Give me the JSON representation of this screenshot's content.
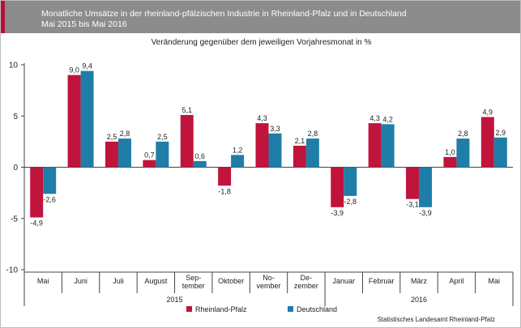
{
  "header": {
    "title": "Monatliche Umsätze in der rheinland-pfälzischen Industrie in Rheinland-Pfalz und in Deutschland",
    "period": "Mai 2015 bis Mai 2016"
  },
  "source": "Statistisches Landesamt Rheinland-Pfalz",
  "chart_data": {
    "type": "bar",
    "title": "Veränderung gegenüber dem jeweiligen Vorjahresmonat in %",
    "categories": [
      [
        "Mai"
      ],
      [
        "Juni"
      ],
      [
        "Juli"
      ],
      [
        "August"
      ],
      [
        "Sep-",
        "tember"
      ],
      [
        "Oktober"
      ],
      [
        "No-",
        "vember"
      ],
      [
        "De-",
        "zember"
      ],
      [
        "Januar"
      ],
      [
        "Februar"
      ],
      [
        "März"
      ],
      [
        "April"
      ],
      [
        "Mai"
      ]
    ],
    "year_groups": [
      {
        "label": "2015",
        "start": 0,
        "end": 7
      },
      {
        "label": "2016",
        "start": 8,
        "end": 12
      }
    ],
    "series": [
      {
        "name": "Rheinland-Pfalz",
        "color": "#c0143c",
        "values": [
          -4.9,
          9.0,
          2.5,
          0.7,
          5.1,
          -1.8,
          4.3,
          2.1,
          -3.9,
          4.3,
          -3.1,
          1.0,
          4.9
        ]
      },
      {
        "name": "Deutschland",
        "color": "#1f7ea8",
        "values": [
          -2.6,
          9.4,
          2.8,
          2.5,
          0.6,
          1.2,
          3.3,
          2.8,
          -2.8,
          4.2,
          -3.9,
          2.8,
          2.9
        ]
      }
    ],
    "value_labels": [
      [
        "-4,9",
        "9,0",
        "2,5",
        "0,7",
        "5,1",
        "-1,8",
        "4,3",
        "2,1",
        "-3,9",
        "4,3",
        "-3,1",
        "1,0",
        "4,9"
      ],
      [
        "-2,6",
        "9,4",
        "2,8",
        "2,5",
        "0,6",
        "1,2",
        "3,3",
        "2,8",
        "-2,8",
        "4,2",
        "-3,9",
        "2,8",
        "2,9"
      ]
    ],
    "yticks": [
      10,
      5,
      0,
      -5,
      -10
    ],
    "ytick_labels": [
      "10",
      "5",
      "0",
      "-5",
      "-10"
    ],
    "ylim": [
      -10,
      10
    ],
    "grid": false,
    "legend": "bottom-center"
  }
}
